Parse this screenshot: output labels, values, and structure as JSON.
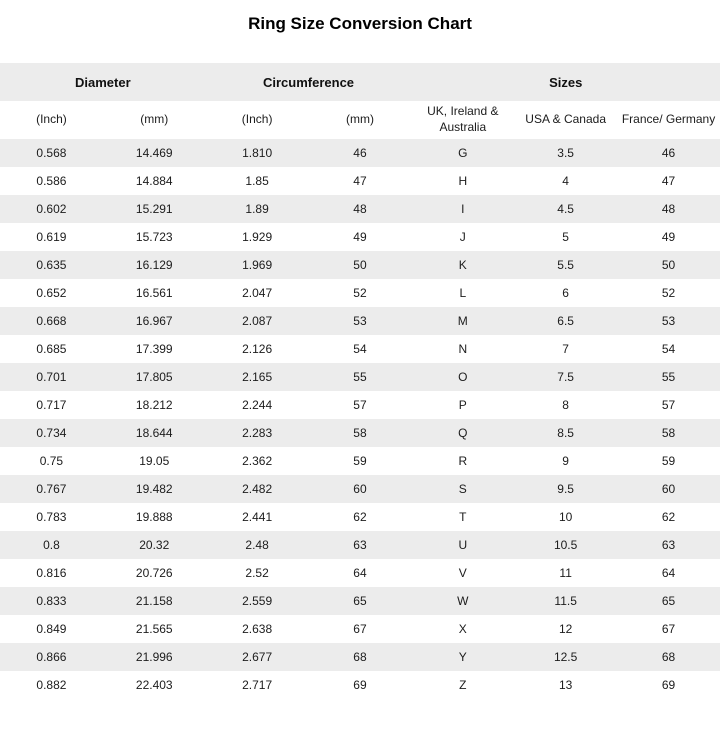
{
  "title": "Ring Size Conversion Chart",
  "colors": {
    "stripe_background": "#ececec",
    "header_background": "#ececec",
    "text": "#1c1c1c",
    "page_background": "#ffffff"
  },
  "chart_data": {
    "type": "table",
    "title": "Ring Size Conversion Chart",
    "group_headers": [
      {
        "label": "Diameter",
        "span": 2
      },
      {
        "label": "Circumference",
        "span": 2
      },
      {
        "label": "Sizes",
        "span": 3
      }
    ],
    "columns": [
      "(Inch)",
      "(mm)",
      "(Inch)",
      "(mm)",
      "UK, Ireland & Australia",
      "USA & Canada",
      "France/ Germany"
    ],
    "rows": [
      [
        "0.568",
        "14.469",
        "1.810",
        "46",
        "G",
        "3.5",
        "46"
      ],
      [
        "0.586",
        "14.884",
        "1.85",
        "47",
        "H",
        "4",
        "47"
      ],
      [
        "0.602",
        "15.291",
        "1.89",
        "48",
        "I",
        "4.5",
        "48"
      ],
      [
        "0.619",
        "15.723",
        "1.929",
        "49",
        "J",
        "5",
        "49"
      ],
      [
        "0.635",
        "16.129",
        "1.969",
        "50",
        "K",
        "5.5",
        "50"
      ],
      [
        "0.652",
        "16.561",
        "2.047",
        "52",
        "L",
        "6",
        "52"
      ],
      [
        "0.668",
        "16.967",
        "2.087",
        "53",
        "M",
        "6.5",
        "53"
      ],
      [
        "0.685",
        "17.399",
        "2.126",
        "54",
        "N",
        "7",
        "54"
      ],
      [
        "0.701",
        "17.805",
        "2.165",
        "55",
        "O",
        "7.5",
        "55"
      ],
      [
        "0.717",
        "18.212",
        "2.244",
        "57",
        "P",
        "8",
        "57"
      ],
      [
        "0.734",
        "18.644",
        "2.283",
        "58",
        "Q",
        "8.5",
        "58"
      ],
      [
        "0.75",
        "19.05",
        "2.362",
        "59",
        "R",
        "9",
        "59"
      ],
      [
        "0.767",
        "19.482",
        "2.482",
        "60",
        "S",
        "9.5",
        "60"
      ],
      [
        "0.783",
        "19.888",
        "2.441",
        "62",
        "T",
        "10",
        "62"
      ],
      [
        "0.8",
        "20.32",
        "2.48",
        "63",
        "U",
        "10.5",
        "63"
      ],
      [
        "0.816",
        "20.726",
        "2.52",
        "64",
        "V",
        "11",
        "64"
      ],
      [
        "0.833",
        "21.158",
        "2.559",
        "65",
        "W",
        "11.5",
        "65"
      ],
      [
        "0.849",
        "21.565",
        "2.638",
        "67",
        "X",
        "12",
        "67"
      ],
      [
        "0.866",
        "21.996",
        "2.677",
        "68",
        "Y",
        "12.5",
        "68"
      ],
      [
        "0.882",
        "22.403",
        "2.717",
        "69",
        "Z",
        "13",
        "69"
      ]
    ]
  }
}
